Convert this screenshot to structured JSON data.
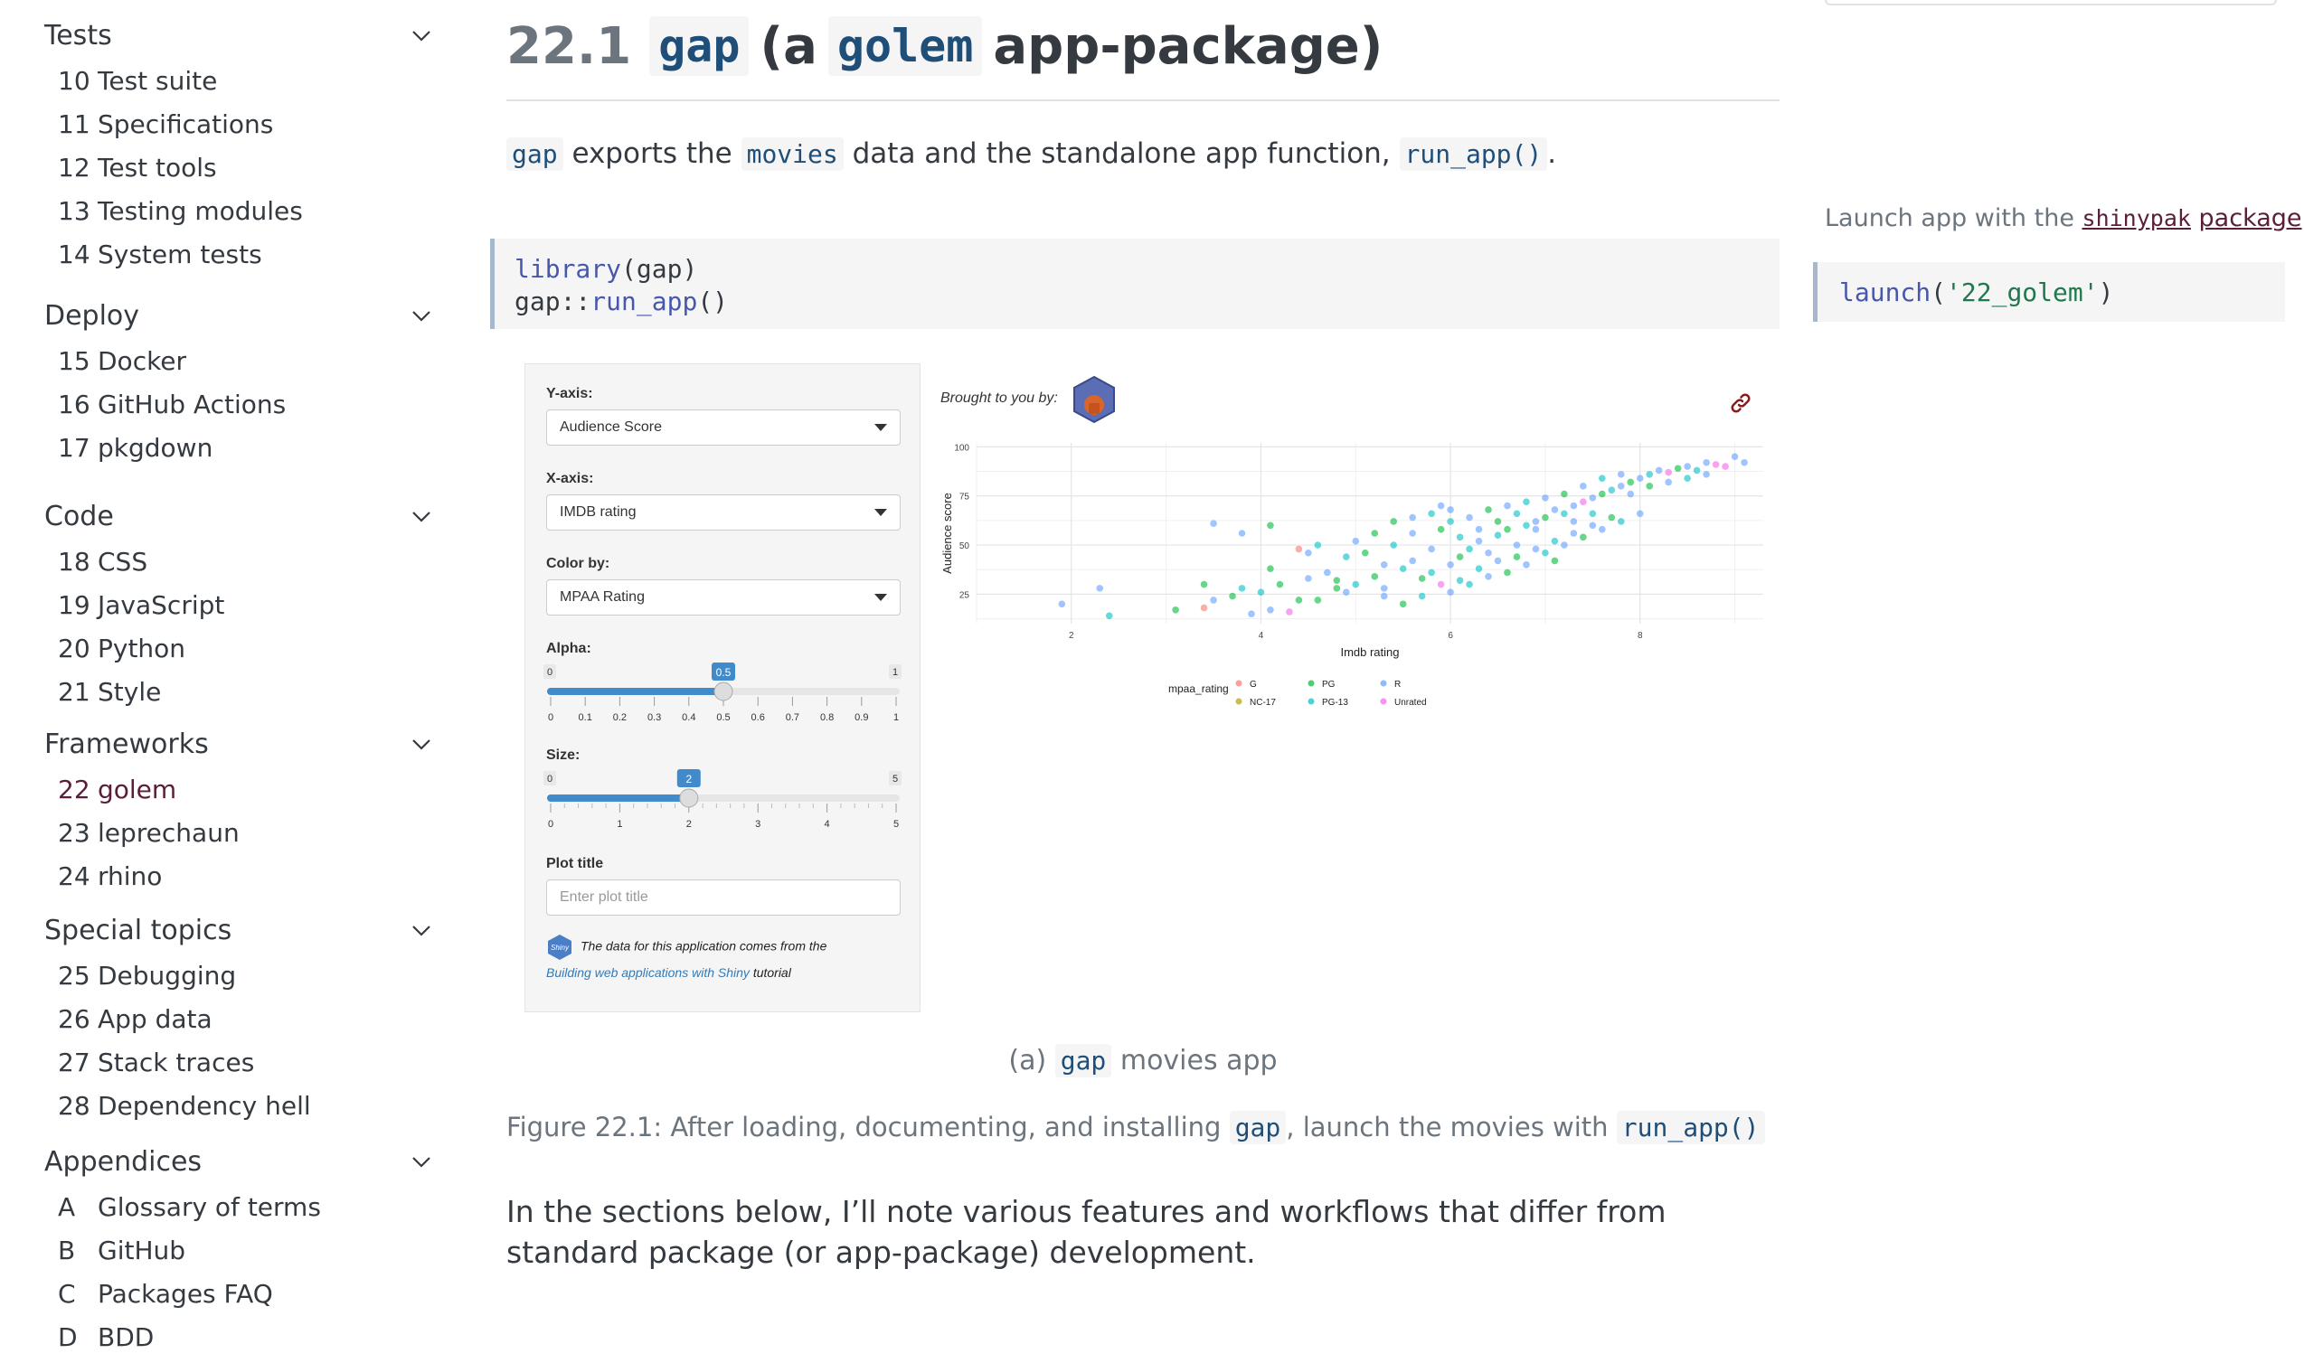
{
  "sidebar": {
    "sections": [
      {
        "label": "Tests",
        "items": [
          {
            "num": "10",
            "label": "Test suite"
          },
          {
            "num": "11",
            "label": "Specifications"
          },
          {
            "num": "12",
            "label": "Test tools"
          },
          {
            "num": "13",
            "label": "Testing modules"
          },
          {
            "num": "14",
            "label": "System tests"
          }
        ]
      },
      {
        "label": "Deploy",
        "items": [
          {
            "num": "15",
            "label": "Docker"
          },
          {
            "num": "16",
            "label": "GitHub Actions"
          },
          {
            "num": "17",
            "label": "pkgdown"
          }
        ]
      },
      {
        "label": "Code",
        "items": [
          {
            "num": "18",
            "label": "CSS"
          },
          {
            "num": "19",
            "label": "JavaScript"
          },
          {
            "num": "20",
            "label": "Python"
          },
          {
            "num": "21",
            "label": "Style"
          }
        ]
      },
      {
        "label": "Frameworks",
        "items": [
          {
            "num": "22",
            "label": "golem"
          },
          {
            "num": "23",
            "label": "leprechaun"
          },
          {
            "num": "24",
            "label": "rhino"
          }
        ]
      },
      {
        "label": "Special topics",
        "items": [
          {
            "num": "25",
            "label": "Debugging"
          },
          {
            "num": "26",
            "label": "App data"
          },
          {
            "num": "27",
            "label": "Stack traces"
          },
          {
            "num": "28",
            "label": "Dependency hell"
          }
        ]
      },
      {
        "label": "Appendices",
        "items": [
          {
            "num": "A",
            "label": "Glossary of terms"
          },
          {
            "num": "B",
            "label": "GitHub"
          },
          {
            "num": "C",
            "label": "Packages FAQ"
          },
          {
            "num": "D",
            "label": "BDD"
          }
        ]
      }
    ],
    "active_item": "golem"
  },
  "main": {
    "heading": {
      "number": "22.1",
      "code1": "gap",
      "text1": "(a",
      "code2": "golem",
      "text2": "app-package)"
    },
    "intro": {
      "code1": "gap",
      "text1": "exports the",
      "code2": "movies",
      "text2": "data and the standalone app function,",
      "code3": "run_app()",
      "text3": "."
    },
    "code_block": {
      "line1_fn": "library",
      "line1_rest": "(gap)",
      "line2_pkg": "gap::",
      "line2_fn": "run_app",
      "line2_rest": "()"
    },
    "app": {
      "yaxis_label": "Y-axis:",
      "yaxis_value": "Audience Score",
      "xaxis_label": "X-axis:",
      "xaxis_value": "IMDB rating",
      "color_label": "Color by:",
      "color_value": "MPAA Rating",
      "alpha_label": "Alpha:",
      "alpha_min": "0",
      "alpha_max": "1",
      "alpha_value": "0.5",
      "alpha_ticks": [
        "0",
        "0.1",
        "0.2",
        "0.3",
        "0.4",
        "0.5",
        "0.6",
        "0.7",
        "0.8",
        "0.9",
        "1"
      ],
      "size_label": "Size:",
      "size_min": "0",
      "size_max": "5",
      "size_value": "2",
      "size_ticks": [
        "0",
        "1",
        "2",
        "3",
        "4",
        "5"
      ],
      "plot_title_label": "Plot title",
      "plot_title_placeholder": "Enter plot title",
      "footer_text": "The data for this application comes from the",
      "footer_link": "Building web applications with Shiny",
      "footer_tail": "tutorial",
      "brought_by": "Brought to you by:"
    },
    "subcaption": {
      "prefix": "(a)",
      "code": "gap",
      "text": "movies app"
    },
    "figure_caption": {
      "text1": "Figure 22.1: After loading, documenting, and installing",
      "code1": "gap",
      "text2": ", launch the movies with",
      "code2": "run_app()"
    },
    "body_text": "In the sections below, I’ll note various features and workflows that differ from standard package (or app-package) development."
  },
  "margin": {
    "text": "Launch app with the",
    "pkg": "shinypak",
    "pkg_word": "package",
    "colon": ":",
    "code_fn": "launch",
    "code_arg": "'22_golem'"
  },
  "chart_data": {
    "type": "scatter",
    "title": "",
    "xlabel": "Imdb rating",
    "ylabel": "Audience score",
    "xlim": [
      1.0,
      9.3
    ],
    "ylim": [
      10,
      102
    ],
    "x_ticks": [
      "2",
      "4",
      "6",
      "8"
    ],
    "y_ticks": [
      "25",
      "50",
      "75",
      "100"
    ],
    "grid": true,
    "legend_title": "mpaa_rating",
    "legend_position": "bottom",
    "series": [
      {
        "name": "G",
        "color": "#F8766D"
      },
      {
        "name": "NC-17",
        "color": "#B79F00"
      },
      {
        "name": "PG",
        "color": "#00BA38"
      },
      {
        "name": "PG-13",
        "color": "#00BFC4"
      },
      {
        "name": "R",
        "color": "#619CFF"
      },
      {
        "name": "Unrated",
        "color": "#F564E3"
      }
    ],
    "points": [
      [
        1.9,
        20,
        4
      ],
      [
        2.4,
        14,
        3
      ],
      [
        3.1,
        17,
        2
      ],
      [
        3.4,
        18,
        0
      ],
      [
        2.3,
        28,
        4
      ],
      [
        3.9,
        15,
        4
      ],
      [
        4.1,
        17,
        4
      ],
      [
        4.3,
        16,
        5
      ],
      [
        3.5,
        22,
        4
      ],
      [
        3.7,
        24,
        2
      ],
      [
        4.0,
        26,
        3
      ],
      [
        4.2,
        30,
        2
      ],
      [
        4.5,
        33,
        4
      ],
      [
        4.1,
        38,
        2
      ],
      [
        3.8,
        28,
        3
      ],
      [
        3.4,
        30,
        2
      ],
      [
        4.6,
        22,
        2
      ],
      [
        4.9,
        26,
        4
      ],
      [
        5.0,
        30,
        3
      ],
      [
        5.2,
        34,
        2
      ],
      [
        5.3,
        28,
        4
      ],
      [
        5.5,
        38,
        3
      ],
      [
        5.6,
        42,
        4
      ],
      [
        5.7,
        33,
        2
      ],
      [
        5.8,
        36,
        3
      ],
      [
        5.9,
        30,
        5
      ],
      [
        6.0,
        40,
        4
      ],
      [
        6.1,
        44,
        2
      ],
      [
        6.2,
        48,
        3
      ],
      [
        6.3,
        52,
        4
      ],
      [
        6.4,
        46,
        4
      ],
      [
        6.5,
        55,
        3
      ],
      [
        6.6,
        58,
        2
      ],
      [
        6.7,
        50,
        4
      ],
      [
        6.8,
        60,
        3
      ],
      [
        6.9,
        62,
        4
      ],
      [
        7.0,
        64,
        2
      ],
      [
        7.1,
        68,
        4
      ],
      [
        7.2,
        66,
        3
      ],
      [
        7.3,
        70,
        4
      ],
      [
        7.4,
        72,
        5
      ],
      [
        7.5,
        74,
        4
      ],
      [
        7.6,
        76,
        2
      ],
      [
        7.7,
        78,
        3
      ],
      [
        7.8,
        80,
        4
      ],
      [
        7.9,
        82,
        2
      ],
      [
        8.0,
        84,
        4
      ],
      [
        8.1,
        86,
        3
      ],
      [
        8.2,
        88,
        4
      ],
      [
        8.3,
        87,
        5
      ],
      [
        8.4,
        89,
        2
      ],
      [
        8.5,
        90,
        4
      ],
      [
        8.6,
        88,
        3
      ],
      [
        8.7,
        92,
        4
      ],
      [
        8.8,
        91,
        5
      ],
      [
        9.0,
        95,
        4
      ],
      [
        5.1,
        46,
        2
      ],
      [
        5.4,
        50,
        3
      ],
      [
        5.6,
        56,
        4
      ],
      [
        5.9,
        58,
        2
      ],
      [
        6.0,
        62,
        3
      ],
      [
        6.2,
        64,
        4
      ],
      [
        6.4,
        68,
        2
      ],
      [
        6.6,
        70,
        4
      ],
      [
        6.8,
        72,
        3
      ],
      [
        7.0,
        74,
        4
      ],
      [
        7.2,
        76,
        2
      ],
      [
        7.4,
        80,
        4
      ],
      [
        7.6,
        84,
        3
      ],
      [
        7.8,
        86,
        4
      ],
      [
        6.3,
        38,
        3
      ],
      [
        6.5,
        42,
        4
      ],
      [
        6.7,
        44,
        2
      ],
      [
        6.9,
        48,
        4
      ],
      [
        7.1,
        52,
        3
      ],
      [
        7.3,
        56,
        4
      ],
      [
        7.5,
        60,
        4
      ],
      [
        7.7,
        64,
        2
      ],
      [
        5.7,
        24,
        3
      ],
      [
        5.5,
        20,
        2
      ],
      [
        4.8,
        32,
        2
      ],
      [
        4.7,
        36,
        4
      ],
      [
        4.9,
        44,
        3
      ],
      [
        5.3,
        40,
        4
      ],
      [
        5.8,
        48,
        4
      ],
      [
        6.1,
        54,
        3
      ],
      [
        6.3,
        58,
        4
      ],
      [
        6.5,
        62,
        2
      ],
      [
        3.5,
        61,
        4
      ],
      [
        3.8,
        56,
        4
      ],
      [
        4.1,
        60,
        2
      ],
      [
        4.4,
        48,
        0
      ],
      [
        4.6,
        50,
        3
      ],
      [
        4.5,
        46,
        4
      ],
      [
        5.0,
        52,
        4
      ],
      [
        5.2,
        56,
        2
      ],
      [
        6.0,
        26,
        4
      ],
      [
        6.2,
        30,
        3
      ],
      [
        6.4,
        34,
        4
      ],
      [
        6.6,
        36,
        2
      ],
      [
        6.8,
        40,
        4
      ],
      [
        7.0,
        46,
        3
      ],
      [
        7.2,
        50,
        4
      ],
      [
        7.4,
        54,
        2
      ],
      [
        7.6,
        58,
        4
      ],
      [
        7.8,
        62,
        3
      ],
      [
        8.0,
        66,
        4
      ],
      [
        5.4,
        62,
        2
      ],
      [
        5.6,
        64,
        4
      ],
      [
        5.8,
        66,
        3
      ],
      [
        6.0,
        68,
        4
      ],
      [
        4.4,
        22,
        2
      ],
      [
        5.9,
        70,
        4
      ],
      [
        6.7,
        66,
        3
      ],
      [
        6.9,
        58,
        4
      ],
      [
        7.1,
        42,
        2
      ],
      [
        7.3,
        62,
        4
      ],
      [
        7.5,
        66,
        3
      ],
      [
        7.9,
        76,
        4
      ],
      [
        8.1,
        80,
        2
      ],
      [
        8.3,
        82,
        4
      ],
      [
        8.5,
        84,
        3
      ],
      [
        8.7,
        86,
        4
      ],
      [
        8.9,
        90,
        5
      ],
      [
        9.1,
        92,
        4
      ],
      [
        6.1,
        32,
        3
      ],
      [
        5.3,
        24,
        4
      ],
      [
        4.8,
        28,
        2
      ]
    ]
  }
}
